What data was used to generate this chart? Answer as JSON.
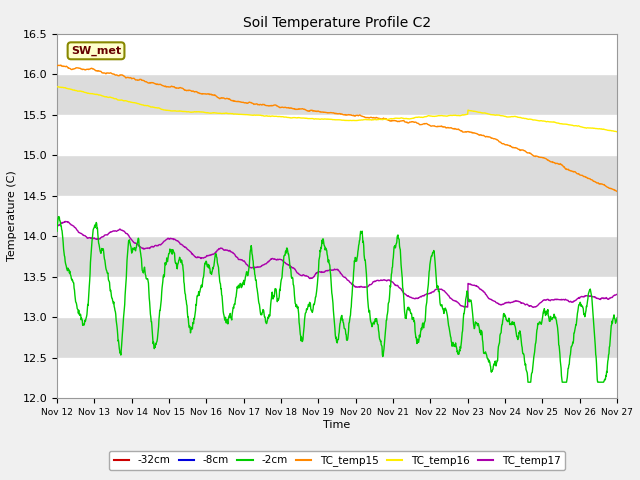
{
  "title": "Soil Temperature Profile C2",
  "xlabel": "Time",
  "ylabel": "Temperature (C)",
  "ylim": [
    12.0,
    16.5
  ],
  "yticks": [
    12.0,
    12.5,
    13.0,
    13.5,
    14.0,
    14.5,
    15.0,
    15.5,
    16.0,
    16.5
  ],
  "x_tick_labels": [
    "Nov 12",
    "Nov 13",
    "Nov 14",
    "Nov 15",
    "Nov 16",
    "Nov 17",
    "Nov 18",
    "Nov 19",
    "Nov 20",
    "Nov 21",
    "Nov 22",
    "Nov 23",
    "Nov 24",
    "Nov 25",
    "Nov 26",
    "Nov 27"
  ],
  "background_color": "#dcdcdc",
  "plot_bg_color": "#dcdcdc",
  "legend_box_label": "SW_met",
  "legend_box_bg": "#ffffcc",
  "legend_box_border": "#888800",
  "series": {
    "TC_temp15": {
      "color": "#ff8800",
      "linewidth": 1.0
    },
    "TC_temp16": {
      "color": "#ffee00",
      "linewidth": 1.0
    },
    "TC_temp17": {
      "color": "#aa00aa",
      "linewidth": 1.0
    },
    "-2cm": {
      "color": "#00cc00",
      "linewidth": 1.0
    },
    "-8cm": {
      "color": "#0000dd",
      "linewidth": 1.0
    },
    "-32cm": {
      "color": "#cc0000",
      "linewidth": 1.0
    }
  },
  "legend_entries": [
    {
      "label": "-32cm",
      "color": "#cc0000"
    },
    {
      "label": "-8cm",
      "color": "#0000dd"
    },
    {
      "label": "-2cm",
      "color": "#00cc00"
    },
    {
      "label": "TC_temp15",
      "color": "#ff8800"
    },
    {
      "label": "TC_temp16",
      "color": "#ffee00"
    },
    {
      "label": "TC_temp17",
      "color": "#aa00aa"
    }
  ]
}
